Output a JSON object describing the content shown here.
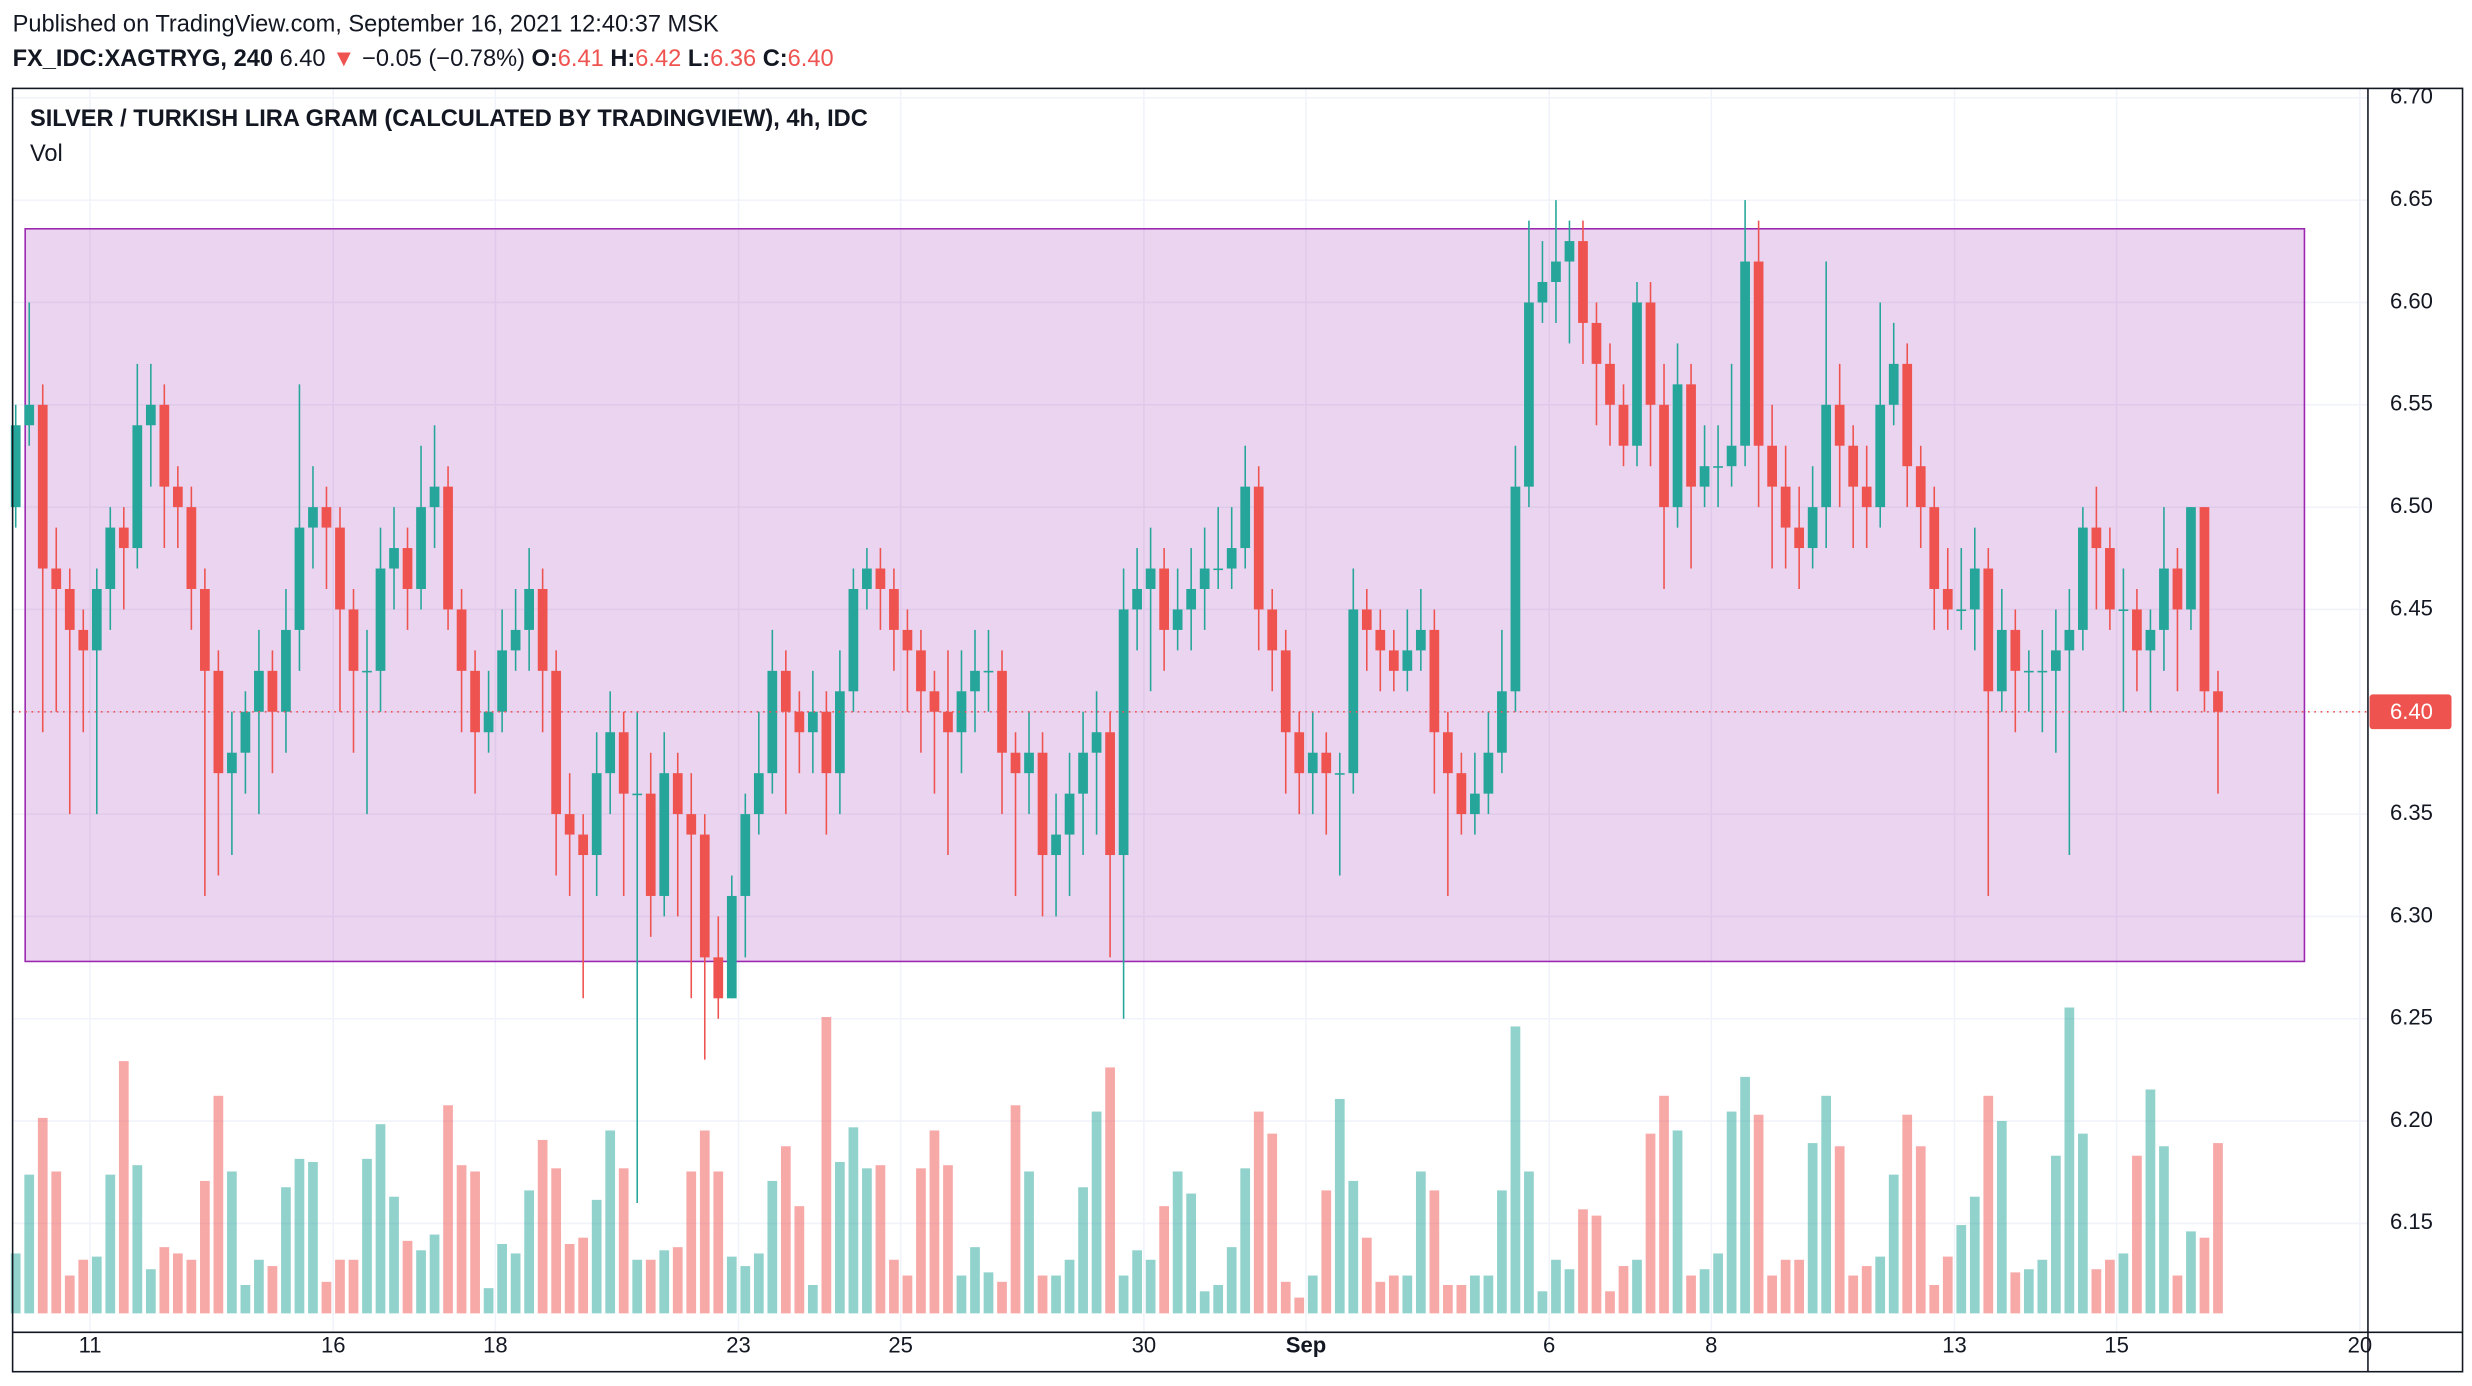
{
  "header": {
    "published": "Published on TradingView.com, September 16, 2021 12:40:37 MSK",
    "symbol": "FX_IDC:XAGTRYG, 240",
    "last": "6.40",
    "arrow": "▼",
    "change": "−0.05 (−0.78%)",
    "o_label": "O:",
    "o": "6.41",
    "h_label": "H:",
    "h": "6.42",
    "l_label": "L:",
    "l": "6.36",
    "c_label": "C:",
    "c": "6.40"
  },
  "chart_data": {
    "type": "candlestick",
    "title": "SILVER / TURKISH LIRA GRAM (CALCULATED BY TRADINGVIEW), 4h, IDC",
    "volume_label": "Vol",
    "up_color": "#26a69a",
    "down_color": "#ef5350",
    "ylim": [
      6.0968,
      6.7046
    ],
    "yticks": [
      6.15,
      {
        "value": 6.2,
        "label": "6.20"
      },
      6.25,
      {
        "value": 6.3,
        "label": "6.30"
      },
      6.35,
      {
        "value": 6.4,
        "label": "6.40"
      },
      6.45,
      {
        "value": 6.5,
        "label": "6.50"
      },
      6.55,
      {
        "value": 6.6,
        "label": "6.60"
      },
      6.65,
      {
        "value": 6.7,
        "label": "6.70"
      }
    ],
    "xlim": [
      -0.23,
      174.1
    ],
    "xticks": [
      {
        "value": 5.5,
        "label": "11"
      },
      {
        "value": 23.5,
        "label": "16"
      },
      {
        "value": 35.5,
        "label": "18"
      },
      {
        "value": 53.5,
        "label": "23"
      },
      {
        "value": 65.5,
        "label": "25"
      },
      {
        "value": 83.5,
        "label": "30"
      },
      {
        "value": 95.5,
        "label": "Sep"
      },
      {
        "value": 113.5,
        "label": "6"
      },
      {
        "value": 125.5,
        "label": "8"
      },
      {
        "value": 143.5,
        "label": "13"
      },
      {
        "value": 155.5,
        "label": "15"
      },
      {
        "value": 173.5,
        "label": "20"
      }
    ],
    "grid": true,
    "last_price": {
      "value": 6.4,
      "label": "6.40"
    },
    "range_box": {
      "x": [
        0.7,
        169.4
      ],
      "y": [
        6.278,
        6.636
      ],
      "color": "#9c27b0"
    },
    "vlim": [
      0,
      100
    ],
    "ohlc": [
      [
        6.5,
        6.55,
        6.49,
        6.54
      ],
      [
        6.54,
        6.6,
        6.53,
        6.55
      ],
      [
        6.55,
        6.56,
        6.39,
        6.47
      ],
      [
        6.47,
        6.49,
        6.4,
        6.46
      ],
      [
        6.46,
        6.47,
        6.35,
        6.44
      ],
      [
        6.44,
        6.45,
        6.39,
        6.43
      ],
      [
        6.43,
        6.47,
        6.35,
        6.46
      ],
      [
        6.46,
        6.5,
        6.44,
        6.49
      ],
      [
        6.49,
        6.5,
        6.45,
        6.48
      ],
      [
        6.48,
        6.57,
        6.47,
        6.54
      ],
      [
        6.54,
        6.57,
        6.51,
        6.55
      ],
      [
        6.55,
        6.56,
        6.48,
        6.51
      ],
      [
        6.51,
        6.52,
        6.48,
        6.5
      ],
      [
        6.5,
        6.51,
        6.44,
        6.46
      ],
      [
        6.46,
        6.47,
        6.31,
        6.42
      ],
      [
        6.42,
        6.43,
        6.32,
        6.37
      ],
      [
        6.37,
        6.4,
        6.33,
        6.38
      ],
      [
        6.38,
        6.41,
        6.36,
        6.4
      ],
      [
        6.4,
        6.44,
        6.35,
        6.42
      ],
      [
        6.42,
        6.43,
        6.37,
        6.4
      ],
      [
        6.4,
        6.46,
        6.38,
        6.44
      ],
      [
        6.44,
        6.56,
        6.42,
        6.49
      ],
      [
        6.49,
        6.52,
        6.47,
        6.5
      ],
      [
        6.5,
        6.51,
        6.46,
        6.49
      ],
      [
        6.49,
        6.5,
        6.4,
        6.45
      ],
      [
        6.45,
        6.46,
        6.38,
        6.42
      ],
      [
        6.42,
        6.44,
        6.35,
        6.42
      ],
      [
        6.42,
        6.49,
        6.4,
        6.47
      ],
      [
        6.47,
        6.5,
        6.45,
        6.48
      ],
      [
        6.48,
        6.49,
        6.44,
        6.46
      ],
      [
        6.46,
        6.53,
        6.45,
        6.5
      ],
      [
        6.5,
        6.54,
        6.48,
        6.51
      ],
      [
        6.51,
        6.52,
        6.44,
        6.45
      ],
      [
        6.45,
        6.46,
        6.39,
        6.42
      ],
      [
        6.42,
        6.43,
        6.36,
        6.39
      ],
      [
        6.39,
        6.42,
        6.38,
        6.4
      ],
      [
        6.4,
        6.45,
        6.39,
        6.43
      ],
      [
        6.43,
        6.46,
        6.42,
        6.44
      ],
      [
        6.44,
        6.48,
        6.42,
        6.46
      ],
      [
        6.46,
        6.47,
        6.39,
        6.42
      ],
      [
        6.42,
        6.43,
        6.32,
        6.35
      ],
      [
        6.35,
        6.37,
        6.31,
        6.34
      ],
      [
        6.34,
        6.35,
        6.26,
        6.33
      ],
      [
        6.33,
        6.39,
        6.31,
        6.37
      ],
      [
        6.37,
        6.41,
        6.35,
        6.39
      ],
      [
        6.39,
        6.4,
        6.31,
        6.36
      ],
      [
        6.36,
        6.4,
        6.16,
        6.36
      ],
      [
        6.36,
        6.38,
        6.29,
        6.31
      ],
      [
        6.31,
        6.39,
        6.3,
        6.37
      ],
      [
        6.37,
        6.38,
        6.3,
        6.35
      ],
      [
        6.35,
        6.37,
        6.26,
        6.34
      ],
      [
        6.34,
        6.35,
        6.23,
        6.28
      ],
      [
        6.28,
        6.3,
        6.25,
        6.26
      ],
      [
        6.26,
        6.32,
        6.26,
        6.31
      ],
      [
        6.31,
        6.36,
        6.28,
        6.35
      ],
      [
        6.35,
        6.4,
        6.34,
        6.37
      ],
      [
        6.37,
        6.44,
        6.36,
        6.42
      ],
      [
        6.42,
        6.43,
        6.35,
        6.4
      ],
      [
        6.4,
        6.41,
        6.37,
        6.39
      ],
      [
        6.39,
        6.42,
        6.37,
        6.4
      ],
      [
        6.4,
        6.41,
        6.34,
        6.37
      ],
      [
        6.37,
        6.43,
        6.35,
        6.41
      ],
      [
        6.41,
        6.47,
        6.4,
        6.46
      ],
      [
        6.46,
        6.48,
        6.45,
        6.47
      ],
      [
        6.47,
        6.48,
        6.44,
        6.46
      ],
      [
        6.46,
        6.47,
        6.42,
        6.44
      ],
      [
        6.44,
        6.45,
        6.4,
        6.43
      ],
      [
        6.43,
        6.44,
        6.38,
        6.41
      ],
      [
        6.41,
        6.42,
        6.36,
        6.4
      ],
      [
        6.4,
        6.43,
        6.33,
        6.39
      ],
      [
        6.39,
        6.43,
        6.37,
        6.41
      ],
      [
        6.41,
        6.44,
        6.39,
        6.42
      ],
      [
        6.42,
        6.44,
        6.4,
        6.42
      ],
      [
        6.42,
        6.43,
        6.35,
        6.38
      ],
      [
        6.38,
        6.39,
        6.31,
        6.37
      ],
      [
        6.37,
        6.4,
        6.35,
        6.38
      ],
      [
        6.38,
        6.39,
        6.3,
        6.33
      ],
      [
        6.33,
        6.36,
        6.3,
        6.34
      ],
      [
        6.34,
        6.38,
        6.31,
        6.36
      ],
      [
        6.36,
        6.4,
        6.33,
        6.38
      ],
      [
        6.38,
        6.41,
        6.34,
        6.39
      ],
      [
        6.39,
        6.4,
        6.28,
        6.33
      ],
      [
        6.33,
        6.47,
        6.25,
        6.45
      ],
      [
        6.45,
        6.48,
        6.43,
        6.46
      ],
      [
        6.46,
        6.49,
        6.41,
        6.47
      ],
      [
        6.47,
        6.48,
        6.42,
        6.44
      ],
      [
        6.44,
        6.47,
        6.43,
        6.45
      ],
      [
        6.45,
        6.48,
        6.43,
        6.46
      ],
      [
        6.46,
        6.49,
        6.44,
        6.47
      ],
      [
        6.47,
        6.5,
        6.46,
        6.47
      ],
      [
        6.47,
        6.5,
        6.46,
        6.48
      ],
      [
        6.48,
        6.53,
        6.47,
        6.51
      ],
      [
        6.51,
        6.52,
        6.43,
        6.45
      ],
      [
        6.45,
        6.46,
        6.41,
        6.43
      ],
      [
        6.43,
        6.44,
        6.36,
        6.39
      ],
      [
        6.39,
        6.4,
        6.35,
        6.37
      ],
      [
        6.37,
        6.4,
        6.35,
        6.38
      ],
      [
        6.38,
        6.39,
        6.34,
        6.37
      ],
      [
        6.37,
        6.38,
        6.32,
        6.37
      ],
      [
        6.37,
        6.47,
        6.36,
        6.45
      ],
      [
        6.45,
        6.46,
        6.42,
        6.44
      ],
      [
        6.44,
        6.45,
        6.41,
        6.43
      ],
      [
        6.43,
        6.44,
        6.41,
        6.42
      ],
      [
        6.42,
        6.45,
        6.41,
        6.43
      ],
      [
        6.43,
        6.46,
        6.42,
        6.44
      ],
      [
        6.44,
        6.45,
        6.36,
        6.39
      ],
      [
        6.39,
        6.4,
        6.31,
        6.37
      ],
      [
        6.37,
        6.38,
        6.34,
        6.35
      ],
      [
        6.35,
        6.38,
        6.34,
        6.36
      ],
      [
        6.36,
        6.4,
        6.35,
        6.38
      ],
      [
        6.38,
        6.44,
        6.37,
        6.41
      ],
      [
        6.41,
        6.53,
        6.4,
        6.51
      ],
      [
        6.51,
        6.64,
        6.5,
        6.6
      ],
      [
        6.6,
        6.63,
        6.59,
        6.61
      ],
      [
        6.61,
        6.65,
        6.59,
        6.62
      ],
      [
        6.62,
        6.64,
        6.58,
        6.63
      ],
      [
        6.63,
        6.64,
        6.57,
        6.59
      ],
      [
        6.59,
        6.6,
        6.54,
        6.57
      ],
      [
        6.57,
        6.58,
        6.53,
        6.55
      ],
      [
        6.55,
        6.56,
        6.52,
        6.53
      ],
      [
        6.53,
        6.61,
        6.52,
        6.6
      ],
      [
        6.6,
        6.61,
        6.52,
        6.55
      ],
      [
        6.55,
        6.57,
        6.46,
        6.5
      ],
      [
        6.5,
        6.58,
        6.49,
        6.56
      ],
      [
        6.56,
        6.57,
        6.47,
        6.51
      ],
      [
        6.51,
        6.54,
        6.5,
        6.52
      ],
      [
        6.52,
        6.54,
        6.5,
        6.52
      ],
      [
        6.52,
        6.57,
        6.51,
        6.53
      ],
      [
        6.53,
        6.65,
        6.52,
        6.62
      ],
      [
        6.62,
        6.64,
        6.5,
        6.53
      ],
      [
        6.53,
        6.55,
        6.47,
        6.51
      ],
      [
        6.51,
        6.53,
        6.47,
        6.49
      ],
      [
        6.49,
        6.51,
        6.46,
        6.48
      ],
      [
        6.48,
        6.52,
        6.47,
        6.5
      ],
      [
        6.5,
        6.62,
        6.48,
        6.55
      ],
      [
        6.55,
        6.57,
        6.5,
        6.53
      ],
      [
        6.53,
        6.54,
        6.48,
        6.51
      ],
      [
        6.51,
        6.53,
        6.48,
        6.5
      ],
      [
        6.5,
        6.6,
        6.49,
        6.55
      ],
      [
        6.55,
        6.59,
        6.54,
        6.57
      ],
      [
        6.57,
        6.58,
        6.5,
        6.52
      ],
      [
        6.52,
        6.53,
        6.48,
        6.5
      ],
      [
        6.5,
        6.51,
        6.44,
        6.46
      ],
      [
        6.46,
        6.48,
        6.44,
        6.45
      ],
      [
        6.45,
        6.48,
        6.44,
        6.45
      ],
      [
        6.45,
        6.49,
        6.43,
        6.47
      ],
      [
        6.47,
        6.48,
        6.31,
        6.41
      ],
      [
        6.41,
        6.46,
        6.4,
        6.44
      ],
      [
        6.44,
        6.45,
        6.39,
        6.42
      ],
      [
        6.42,
        6.43,
        6.4,
        6.42
      ],
      [
        6.42,
        6.44,
        6.39,
        6.42
      ],
      [
        6.42,
        6.45,
        6.38,
        6.43
      ],
      [
        6.43,
        6.46,
        6.33,
        6.44
      ],
      [
        6.44,
        6.5,
        6.43,
        6.49
      ],
      [
        6.49,
        6.51,
        6.45,
        6.48
      ],
      [
        6.48,
        6.49,
        6.44,
        6.45
      ],
      [
        6.45,
        6.47,
        6.4,
        6.45
      ],
      [
        6.45,
        6.46,
        6.41,
        6.43
      ],
      [
        6.43,
        6.45,
        6.4,
        6.44
      ],
      [
        6.44,
        6.5,
        6.42,
        6.47
      ],
      [
        6.47,
        6.48,
        6.41,
        6.45
      ],
      [
        6.45,
        6.5,
        6.44,
        6.5
      ],
      [
        6.5,
        6.5,
        6.4,
        6.41
      ],
      [
        6.41,
        6.42,
        6.36,
        6.4
      ]
    ],
    "volume": [
      19,
      44,
      62,
      45,
      12,
      17,
      18,
      44,
      80,
      47,
      14,
      21,
      19,
      17,
      42,
      69,
      45,
      9,
      17,
      15,
      40,
      49,
      48,
      10,
      17,
      17,
      49,
      60,
      37,
      23,
      20,
      25,
      66,
      47,
      45,
      8,
      22,
      19,
      39,
      55,
      46,
      22,
      24,
      36,
      58,
      46,
      17,
      17,
      20,
      21,
      45,
      58,
      45,
      18,
      15,
      19,
      42,
      53,
      34,
      9,
      94,
      48,
      59,
      46,
      47,
      17,
      12,
      46,
      58,
      47,
      12,
      21,
      13,
      10,
      66,
      45,
      12,
      12,
      17,
      40,
      64,
      78,
      12,
      20,
      17,
      34,
      45,
      38,
      7,
      9,
      21,
      46,
      64,
      57,
      10,
      5,
      12,
      39,
      68,
      42,
      24,
      10,
      12,
      12,
      45,
      39,
      9,
      9,
      12,
      12,
      39,
      91,
      45,
      7,
      17,
      14,
      33,
      31,
      7,
      15,
      17,
      57,
      69,
      58,
      12,
      14,
      19,
      64,
      75,
      63,
      12,
      17,
      17,
      54,
      69,
      53,
      12,
      15,
      18,
      44,
      63,
      53,
      9,
      18,
      28,
      37,
      69,
      61,
      13,
      14,
      17,
      50,
      97,
      57,
      14,
      17,
      19,
      50,
      71,
      53,
      12,
      26,
      24,
      54
    ]
  }
}
